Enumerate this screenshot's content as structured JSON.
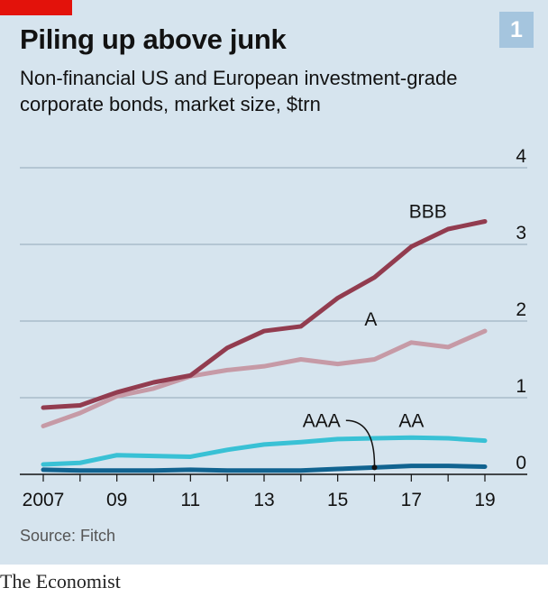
{
  "header": {
    "title": "Piling up above junk",
    "subtitle": "Non-financial US and European investment-grade corporate bonds, market size, $trn",
    "chart_number": "1"
  },
  "footer": {
    "source": "Source: Fitch",
    "brand": "The Economist"
  },
  "colors": {
    "BBB": "#923c4f",
    "A": "#c69aa6",
    "AA": "#39c1d5",
    "AAA": "#116390",
    "grid": "#9fb3c3",
    "accent": "#e3120b"
  },
  "chart_data": {
    "type": "line",
    "title": "Piling up above junk",
    "ylim": [
      0,
      4
    ],
    "xlim": [
      2007,
      2019
    ],
    "y_ticks": [
      "0",
      "1",
      "2",
      "3",
      "4"
    ],
    "x_ticks": [
      "2007",
      "09",
      "11",
      "13",
      "15",
      "17",
      "19"
    ],
    "x": [
      2007,
      2008,
      2009,
      2010,
      2011,
      2012,
      2013,
      2014,
      2015,
      2016,
      2017,
      2018,
      2019
    ],
    "series": [
      {
        "name": "BBB",
        "values": [
          0.87,
          0.9,
          1.07,
          1.2,
          1.29,
          1.65,
          1.87,
          1.93,
          2.3,
          2.57,
          2.97,
          3.2,
          3.3
        ]
      },
      {
        "name": "A",
        "values": [
          0.63,
          0.8,
          1.02,
          1.12,
          1.28,
          1.36,
          1.41,
          1.5,
          1.44,
          1.5,
          1.72,
          1.66,
          1.87
        ]
      },
      {
        "name": "AA",
        "values": [
          0.13,
          0.15,
          0.25,
          0.24,
          0.23,
          0.32,
          0.39,
          0.42,
          0.46,
          0.47,
          0.48,
          0.47,
          0.44
        ]
      },
      {
        "name": "AAA",
        "values": [
          0.06,
          0.05,
          0.05,
          0.05,
          0.06,
          0.05,
          0.05,
          0.05,
          0.07,
          0.09,
          0.11,
          0.11,
          0.1
        ]
      }
    ],
    "annotations": [
      {
        "text": "BBB",
        "series": "BBB"
      },
      {
        "text": "A",
        "series": "A"
      },
      {
        "text": "AA",
        "series": "AA"
      },
      {
        "text": "AAA",
        "series": "AAA",
        "arrow_to_year": 2016
      }
    ],
    "source": "Source: Fitch"
  }
}
